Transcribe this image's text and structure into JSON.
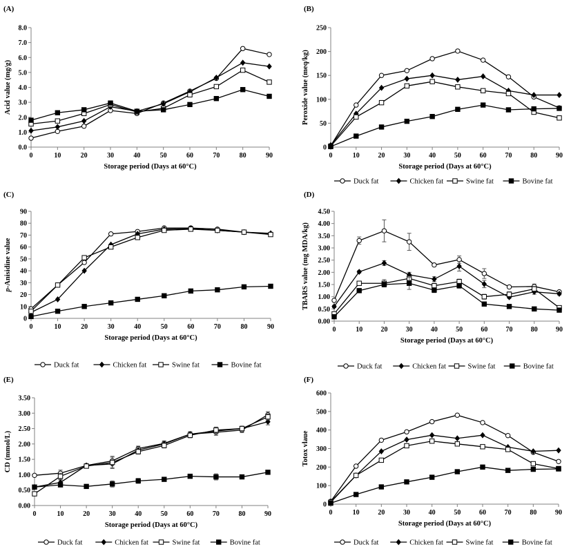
{
  "chart_data": [
    {
      "panel": "(A)",
      "type": "line",
      "xlabel": "Storage period  (Days at 60°C)",
      "ylabel": "Acid value (mg/g)",
      "x": [
        0,
        10,
        20,
        30,
        40,
        50,
        60,
        70,
        80,
        90
      ],
      "xlim": [
        0,
        90
      ],
      "ylim": [
        0,
        8
      ],
      "yticks": [
        "0.0",
        "1.0",
        "2.0",
        "3.0",
        "4.0",
        "5.0",
        "6.0",
        "7.0",
        "8.0"
      ],
      "series": [
        {
          "name": "Duck fat",
          "values": [
            0.6,
            1.05,
            1.4,
            2.45,
            2.25,
            2.95,
            3.75,
            4.6,
            6.6,
            6.2
          ]
        },
        {
          "name": "Chicken fat",
          "values": [
            1.1,
            1.35,
            1.75,
            2.7,
            2.4,
            2.9,
            3.7,
            4.65,
            5.65,
            5.4
          ]
        },
        {
          "name": "Swine fat",
          "values": [
            1.55,
            1.75,
            2.25,
            2.85,
            2.35,
            2.6,
            3.5,
            4.05,
            5.15,
            4.35
          ]
        },
        {
          "name": "Bovine fat",
          "values": [
            1.8,
            2.3,
            2.5,
            2.95,
            2.4,
            2.5,
            2.85,
            3.25,
            3.85,
            3.4
          ]
        }
      ],
      "legend": "none"
    },
    {
      "panel": "(B)",
      "type": "line",
      "xlabel": "Storage period  (Days at 60°C)",
      "ylabel": "Peroxide value (meq/kg)",
      "x": [
        0,
        10,
        20,
        30,
        40,
        50,
        60,
        70,
        80,
        90
      ],
      "xlim": [
        0,
        90
      ],
      "ylim": [
        0,
        250
      ],
      "yticks": [
        "0",
        "50",
        "100",
        "150",
        "200",
        "250"
      ],
      "series": [
        {
          "name": "Duck fat",
          "values": [
            3,
            88,
            150,
            160,
            185,
            201,
            182,
            147,
            105,
            82
          ]
        },
        {
          "name": "Chicken fat",
          "values": [
            4,
            70,
            124,
            143,
            150,
            141,
            148,
            118,
            109,
            109
          ]
        },
        {
          "name": "Swine fat",
          "values": [
            2,
            63,
            93,
            128,
            137,
            126,
            118,
            112,
            73,
            61
          ]
        },
        {
          "name": "Bovine fat",
          "values": [
            1,
            23,
            42,
            54,
            64,
            79,
            88,
            78,
            80,
            81
          ]
        }
      ],
      "legend": "bottom"
    },
    {
      "panel": "(C)",
      "type": "line",
      "xlabel": "Storage period  (Days at 60°C)",
      "ylabel": "p-Anisidine value",
      "x": [
        0,
        10,
        20,
        30,
        40,
        50,
        60,
        70,
        80,
        90
      ],
      "xlim": [
        0,
        90
      ],
      "ylim": [
        0,
        90
      ],
      "yticks": [
        "0",
        "10",
        "20",
        "30",
        "40",
        "50",
        "60",
        "70",
        "80",
        "90"
      ],
      "series": [
        {
          "name": "Duck fat",
          "values": [
            8,
            28,
            47,
            71,
            73,
            76,
            76,
            75,
            72.5,
            71
          ]
        },
        {
          "name": "Chicken fat",
          "values": [
            5,
            16,
            40,
            62,
            71,
            75,
            75.5,
            74,
            72.5,
            71.5
          ]
        },
        {
          "name": "Swine fat",
          "values": [
            6,
            28,
            51,
            60,
            68,
            74,
            75,
            74,
            72.5,
            70.5
          ]
        },
        {
          "name": "Bovine fat",
          "values": [
            1.5,
            6,
            10,
            13,
            16,
            19,
            23,
            24,
            26.5,
            27
          ]
        }
      ],
      "legend": "bottom"
    },
    {
      "panel": "(D)",
      "type": "line",
      "xlabel": "Storage period  (Days at 60°C)",
      "ylabel": "TBARS value (mg MDA/kg)",
      "x": [
        0,
        10,
        20,
        30,
        40,
        50,
        60,
        70,
        80,
        90
      ],
      "xlim": [
        0,
        90
      ],
      "ylim": [
        0,
        4.5
      ],
      "yticks": [
        "0.00",
        "0.50",
        "1.00",
        "1.50",
        "2.00",
        "2.50",
        "3.00",
        "3.50",
        "4.00",
        "4.50"
      ],
      "series": [
        {
          "name": "Duck fat",
          "values": [
            0.85,
            3.3,
            3.7,
            3.25,
            2.3,
            2.52,
            1.95,
            1.4,
            1.42,
            1.2
          ],
          "errors": [
            0.05,
            0.15,
            0.45,
            0.35,
            0.05,
            0.15,
            0.2,
            0.05,
            0.1,
            0.05
          ]
        },
        {
          "name": "Chicken fat",
          "values": [
            0.6,
            2.02,
            2.38,
            1.9,
            1.72,
            2.25,
            1.52,
            0.98,
            1.2,
            1.12
          ],
          "errors": [
            0.05,
            0.05,
            0.1,
            0.1,
            0.1,
            0.2,
            0.15,
            0.05,
            0.1,
            0.05
          ]
        },
        {
          "name": "Swine fat",
          "values": [
            0.3,
            1.55,
            1.55,
            1.75,
            1.45,
            1.62,
            1.0,
            1.1,
            1.32,
            0.55
          ],
          "errors": [
            0.05,
            0.05,
            0.15,
            0.1,
            0.1,
            0.1,
            0.1,
            0.1,
            0.1,
            0.05
          ]
        },
        {
          "name": "Bovine fat",
          "values": [
            0.18,
            1.25,
            1.5,
            1.55,
            1.27,
            1.45,
            0.7,
            0.6,
            0.5,
            0.45
          ],
          "errors": [
            0.03,
            0.05,
            0.1,
            0.25,
            0.1,
            0.1,
            0.05,
            0.05,
            0.05,
            0.05
          ]
        }
      ],
      "legend": "bottom"
    },
    {
      "panel": "(E)",
      "type": "line",
      "xlabel": "Storage period  (Days at 60°C)",
      "ylabel": "CD (mmol/L)",
      "x": [
        0,
        10,
        20,
        30,
        40,
        50,
        60,
        70,
        80,
        90
      ],
      "xlim": [
        0,
        90
      ],
      "ylim": [
        0,
        3.5
      ],
      "yticks": [
        "0.00",
        "0.50",
        "1.00",
        "1.50",
        "2.00",
        "2.50",
        "3.00",
        "3.50"
      ],
      "series": [
        {
          "name": "Duck fat",
          "values": [
            0.98,
            1.05,
            1.3,
            1.45,
            1.85,
            2.02,
            2.32,
            2.38,
            2.45,
            2.95
          ],
          "errors": [
            0.03,
            0.1,
            0.05,
            0.12,
            0.08,
            0.08,
            0.08,
            0.1,
            0.08,
            0.1
          ]
        },
        {
          "name": "Chicken fat",
          "values": [
            0.6,
            0.75,
            1.3,
            1.35,
            1.8,
            2.0,
            2.32,
            2.42,
            2.5,
            2.72
          ],
          "errors": [
            0.03,
            0.08,
            0.05,
            0.12,
            0.08,
            0.08,
            0.08,
            0.1,
            0.08,
            0.1
          ]
        },
        {
          "name": "Swine fat",
          "values": [
            0.38,
            0.95,
            1.28,
            1.4,
            1.75,
            1.95,
            2.28,
            2.45,
            2.5,
            2.88
          ],
          "errors": [
            0.03,
            0.1,
            0.05,
            0.2,
            0.08,
            0.08,
            0.08,
            0.1,
            0.08,
            0.1
          ]
        },
        {
          "name": "Bovine fat",
          "values": [
            0.6,
            0.67,
            0.62,
            0.7,
            0.8,
            0.85,
            0.95,
            0.93,
            0.93,
            1.08
          ],
          "errors": [
            0.03,
            0.05,
            0.05,
            0.1,
            0.08,
            0.05,
            0.05,
            0.1,
            0.05,
            0.03
          ]
        }
      ],
      "legend": "bottom"
    },
    {
      "panel": "(F)",
      "type": "line",
      "xlabel": "Storage period  (Days at 60°C)",
      "ylabel": "Totox vlaue",
      "x": [
        0,
        10,
        20,
        30,
        40,
        50,
        60,
        70,
        80,
        90
      ],
      "xlim": [
        0,
        90
      ],
      "ylim": [
        0,
        600
      ],
      "yticks": [
        "0",
        "100",
        "200",
        "300",
        "400",
        "500",
        "600"
      ],
      "series": [
        {
          "name": "Duck fat",
          "values": [
            15,
            205,
            345,
            390,
            445,
            480,
            440,
            370,
            280,
            230
          ]
        },
        {
          "name": "Chicken fat",
          "values": [
            13,
            155,
            285,
            348,
            372,
            355,
            372,
            308,
            285,
            290
          ]
        },
        {
          "name": "Swine fat",
          "values": [
            10,
            155,
            237,
            315,
            340,
            325,
            310,
            295,
            218,
            192
          ]
        },
        {
          "name": "Bovine fat",
          "values": [
            5,
            52,
            93,
            120,
            145,
            175,
            200,
            182,
            188,
            190
          ]
        }
      ],
      "legend": "bottom"
    }
  ],
  "legend_labels": [
    "Duck fat",
    "Chicken fat",
    "Swine fat",
    "Bovine fat"
  ],
  "series_style": {
    "Duck fat": "open-circle",
    "Chicken fat": "filled-diamond",
    "Swine fat": "open-square",
    "Bovine fat": "filled-square"
  },
  "line_color": "#000000"
}
